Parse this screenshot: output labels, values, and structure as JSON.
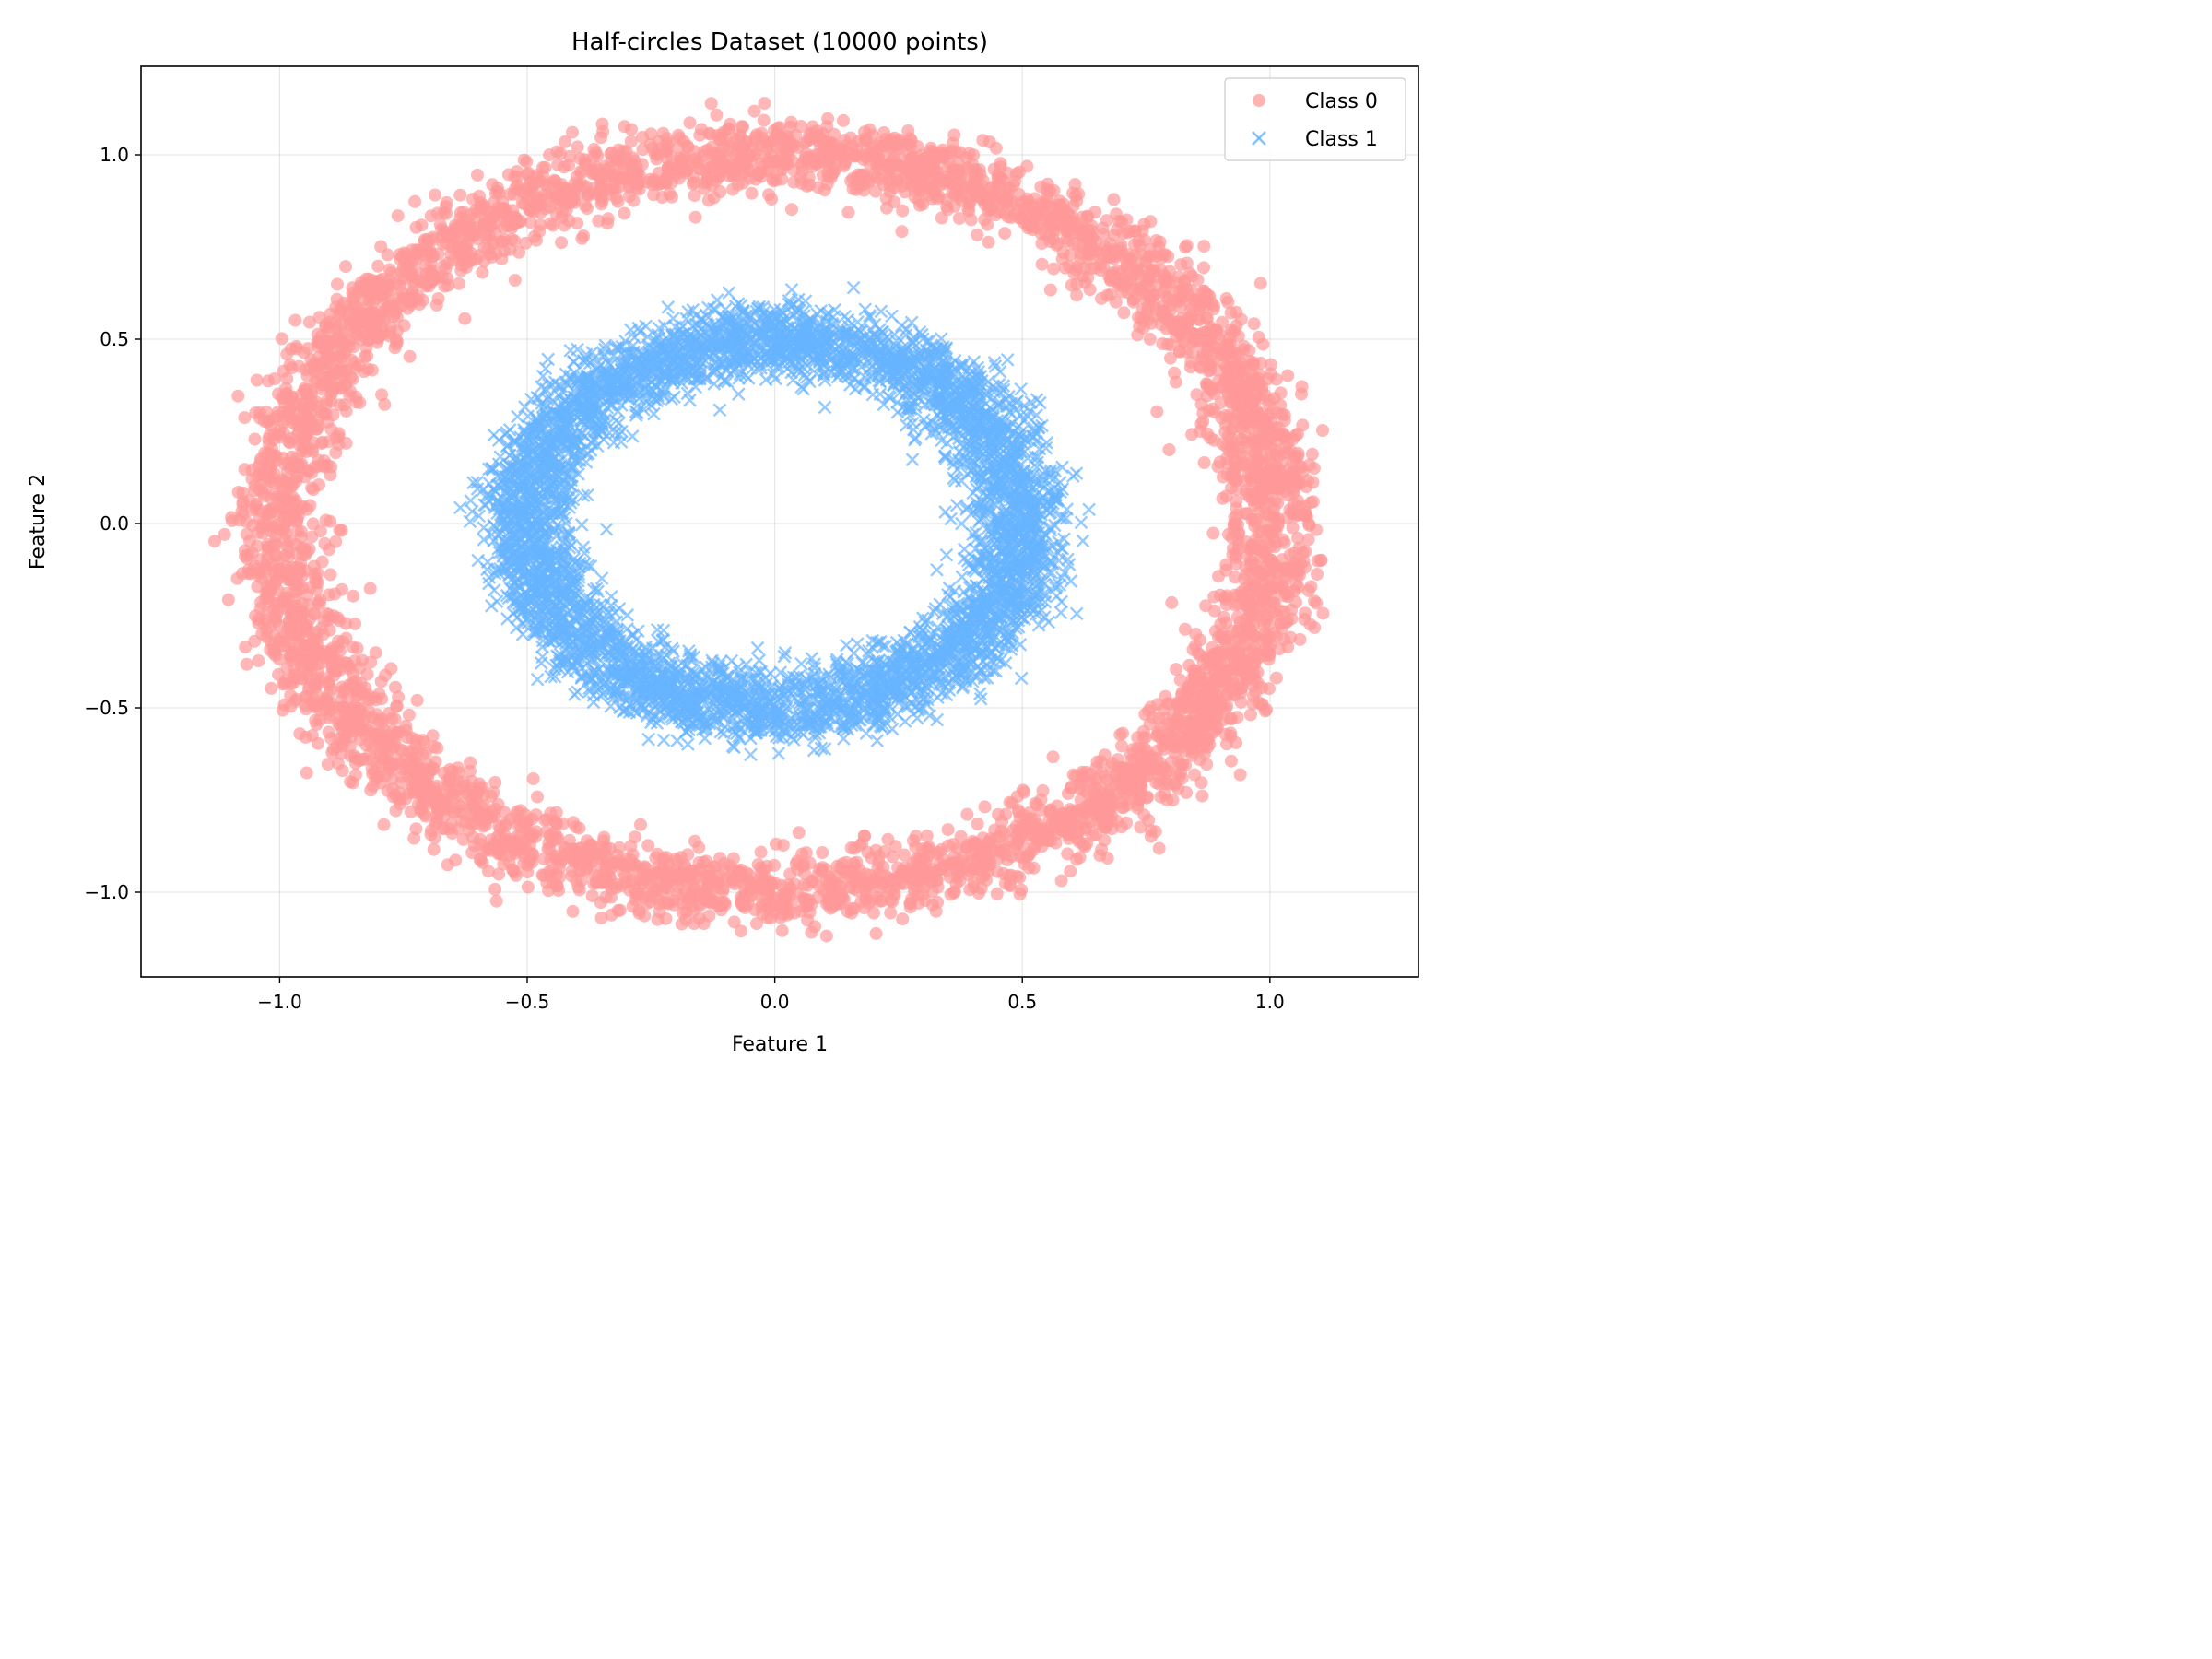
{
  "chart_data": {
    "type": "scatter",
    "title": "Half-circles Dataset (10000 points)",
    "xlabel": "Feature 1",
    "ylabel": "Feature 2",
    "xlim": [
      -1.28,
      1.3
    ],
    "ylim": [
      -1.23,
      1.24
    ],
    "xticks": [
      -1.0,
      -0.5,
      0.0,
      0.5,
      1.0
    ],
    "xtick_labels": [
      "−1.0",
      "−0.5",
      "0.0",
      "0.5",
      "1.0"
    ],
    "yticks": [
      -1.0,
      -0.5,
      0.0,
      0.5,
      1.0
    ],
    "ytick_labels": [
      "−1.0",
      "−0.5",
      "0.0",
      "0.5",
      "1.0"
    ],
    "grid": true,
    "legend_position": "top-right",
    "series": [
      {
        "name": "Class 0",
        "marker": "circle",
        "color": "#ff9999",
        "points": 5000,
        "shape": "ring",
        "center": [
          0.0,
          0.0
        ],
        "radius": 1.0,
        "noise": 0.05
      },
      {
        "name": "Class 1",
        "marker": "x",
        "color": "#66b3ff",
        "points": 5000,
        "shape": "ring",
        "center": [
          0.0,
          0.0
        ],
        "radius": 0.5,
        "noise": 0.05
      }
    ]
  }
}
